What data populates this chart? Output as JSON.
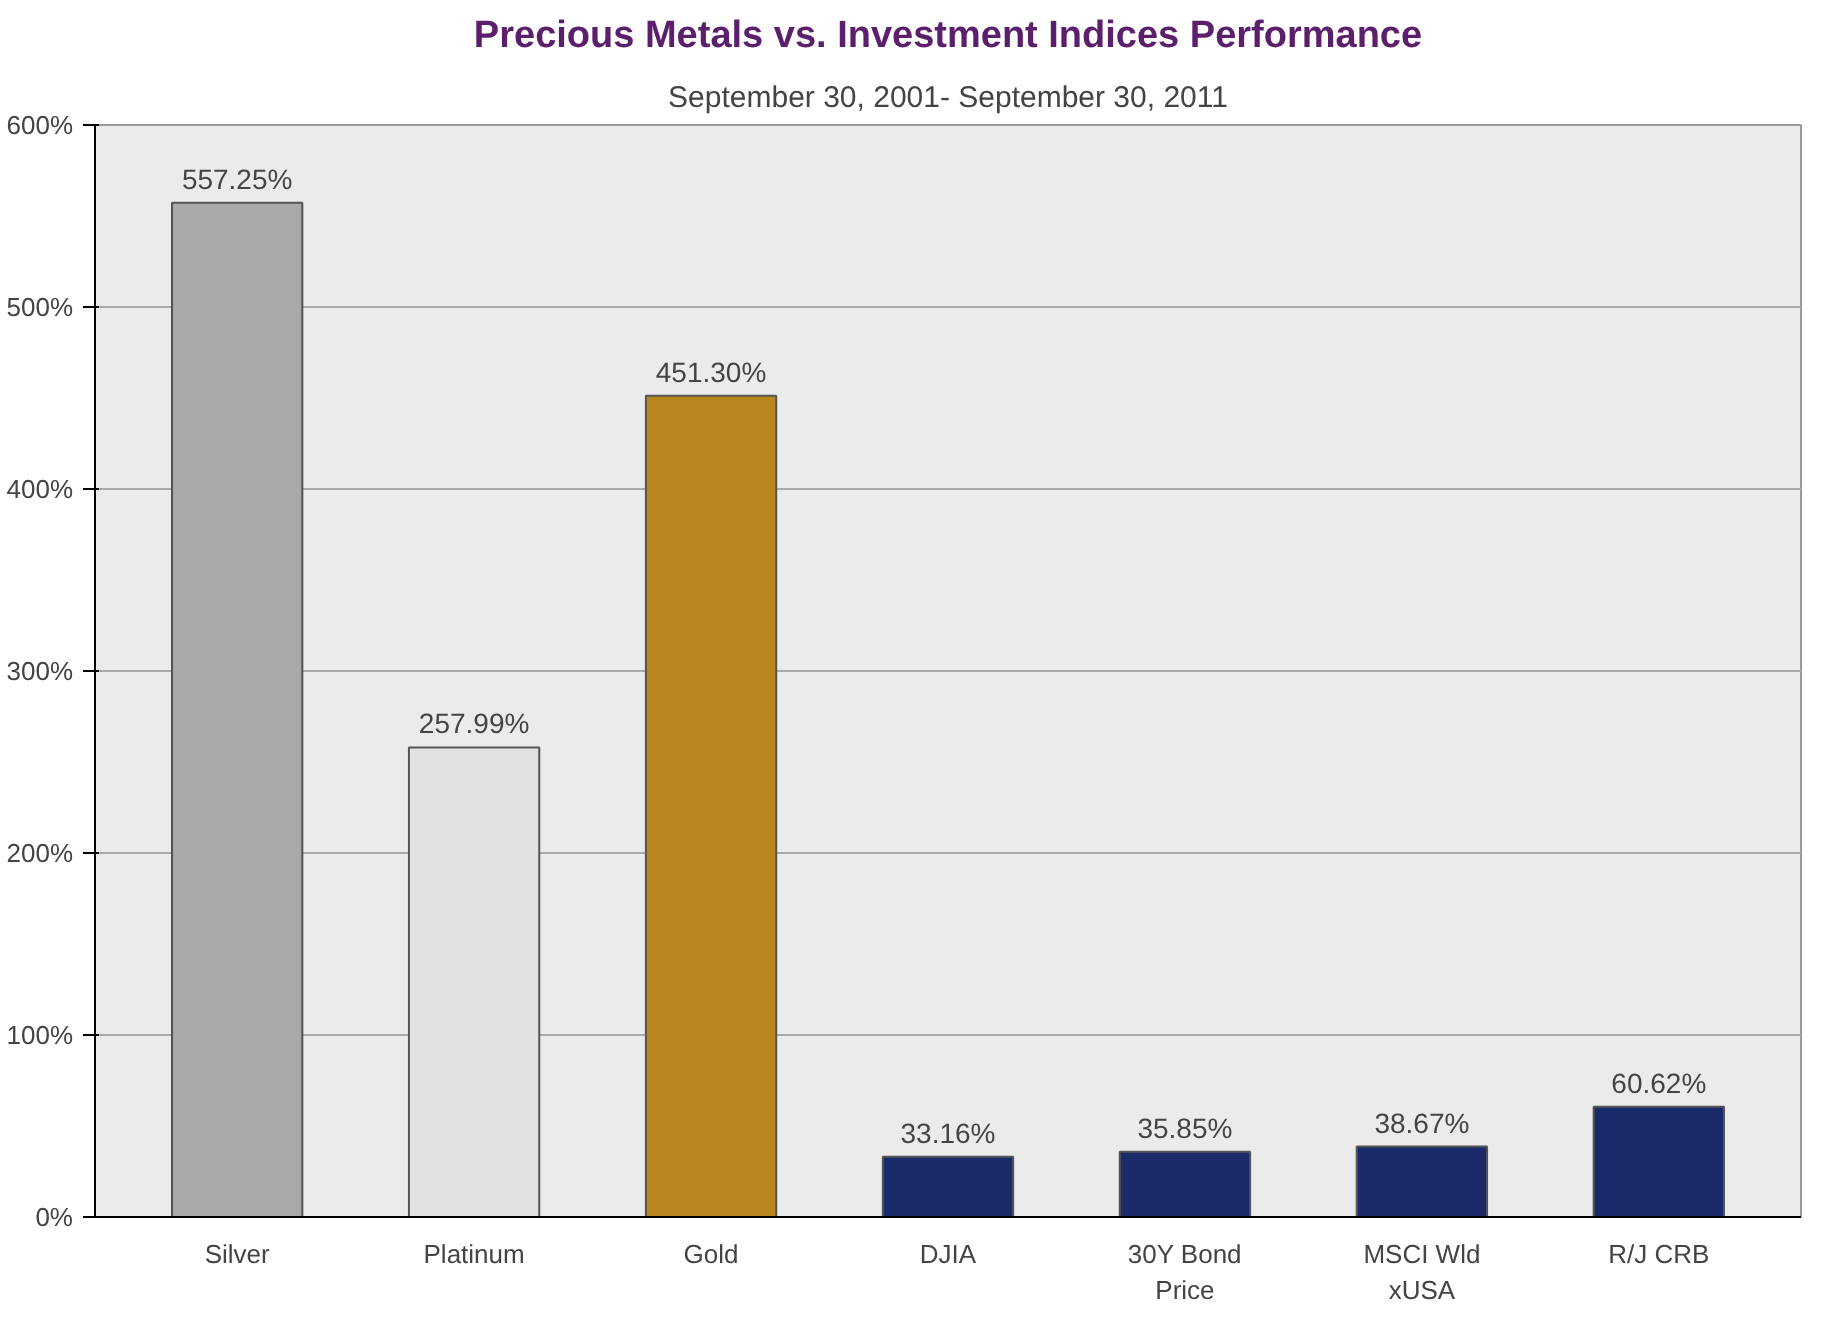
{
  "chart_data": {
    "type": "bar",
    "title": "Precious Metals vs. Investment Indices Performance",
    "subtitle": "September 30, 2001- September 30, 2011",
    "categories": [
      "Silver",
      "Platinum",
      "Gold",
      "DJIA",
      "30Y Bond\nPrice",
      "MSCI Wld\nxUSA",
      "R/J CRB"
    ],
    "values": [
      557.25,
      257.99,
      451.3,
      33.16,
      35.85,
      38.67,
      60.62
    ],
    "colors": [
      "#a9a9a9",
      "#e2e2e2",
      "#b8861e",
      "#1b2a6b",
      "#1b2a6b",
      "#1b2a6b",
      "#1b2a6b"
    ],
    "value_labels": [
      "557.25%",
      "257.99%",
      "451.30%",
      "33.16%",
      "35.85%",
      "38.67%",
      "60.62%"
    ],
    "ylim": [
      0,
      600
    ],
    "yticks": [
      {
        "value": 0,
        "label": "0%"
      },
      {
        "value": 100,
        "label": "100%"
      },
      {
        "value": 200,
        "label": "200%"
      },
      {
        "value": 300,
        "label": "300%"
      },
      {
        "value": 400,
        "label": "400%"
      },
      {
        "value": 500,
        "label": "500%"
      },
      {
        "value": 600,
        "label": "600%"
      }
    ],
    "grid": "y"
  }
}
